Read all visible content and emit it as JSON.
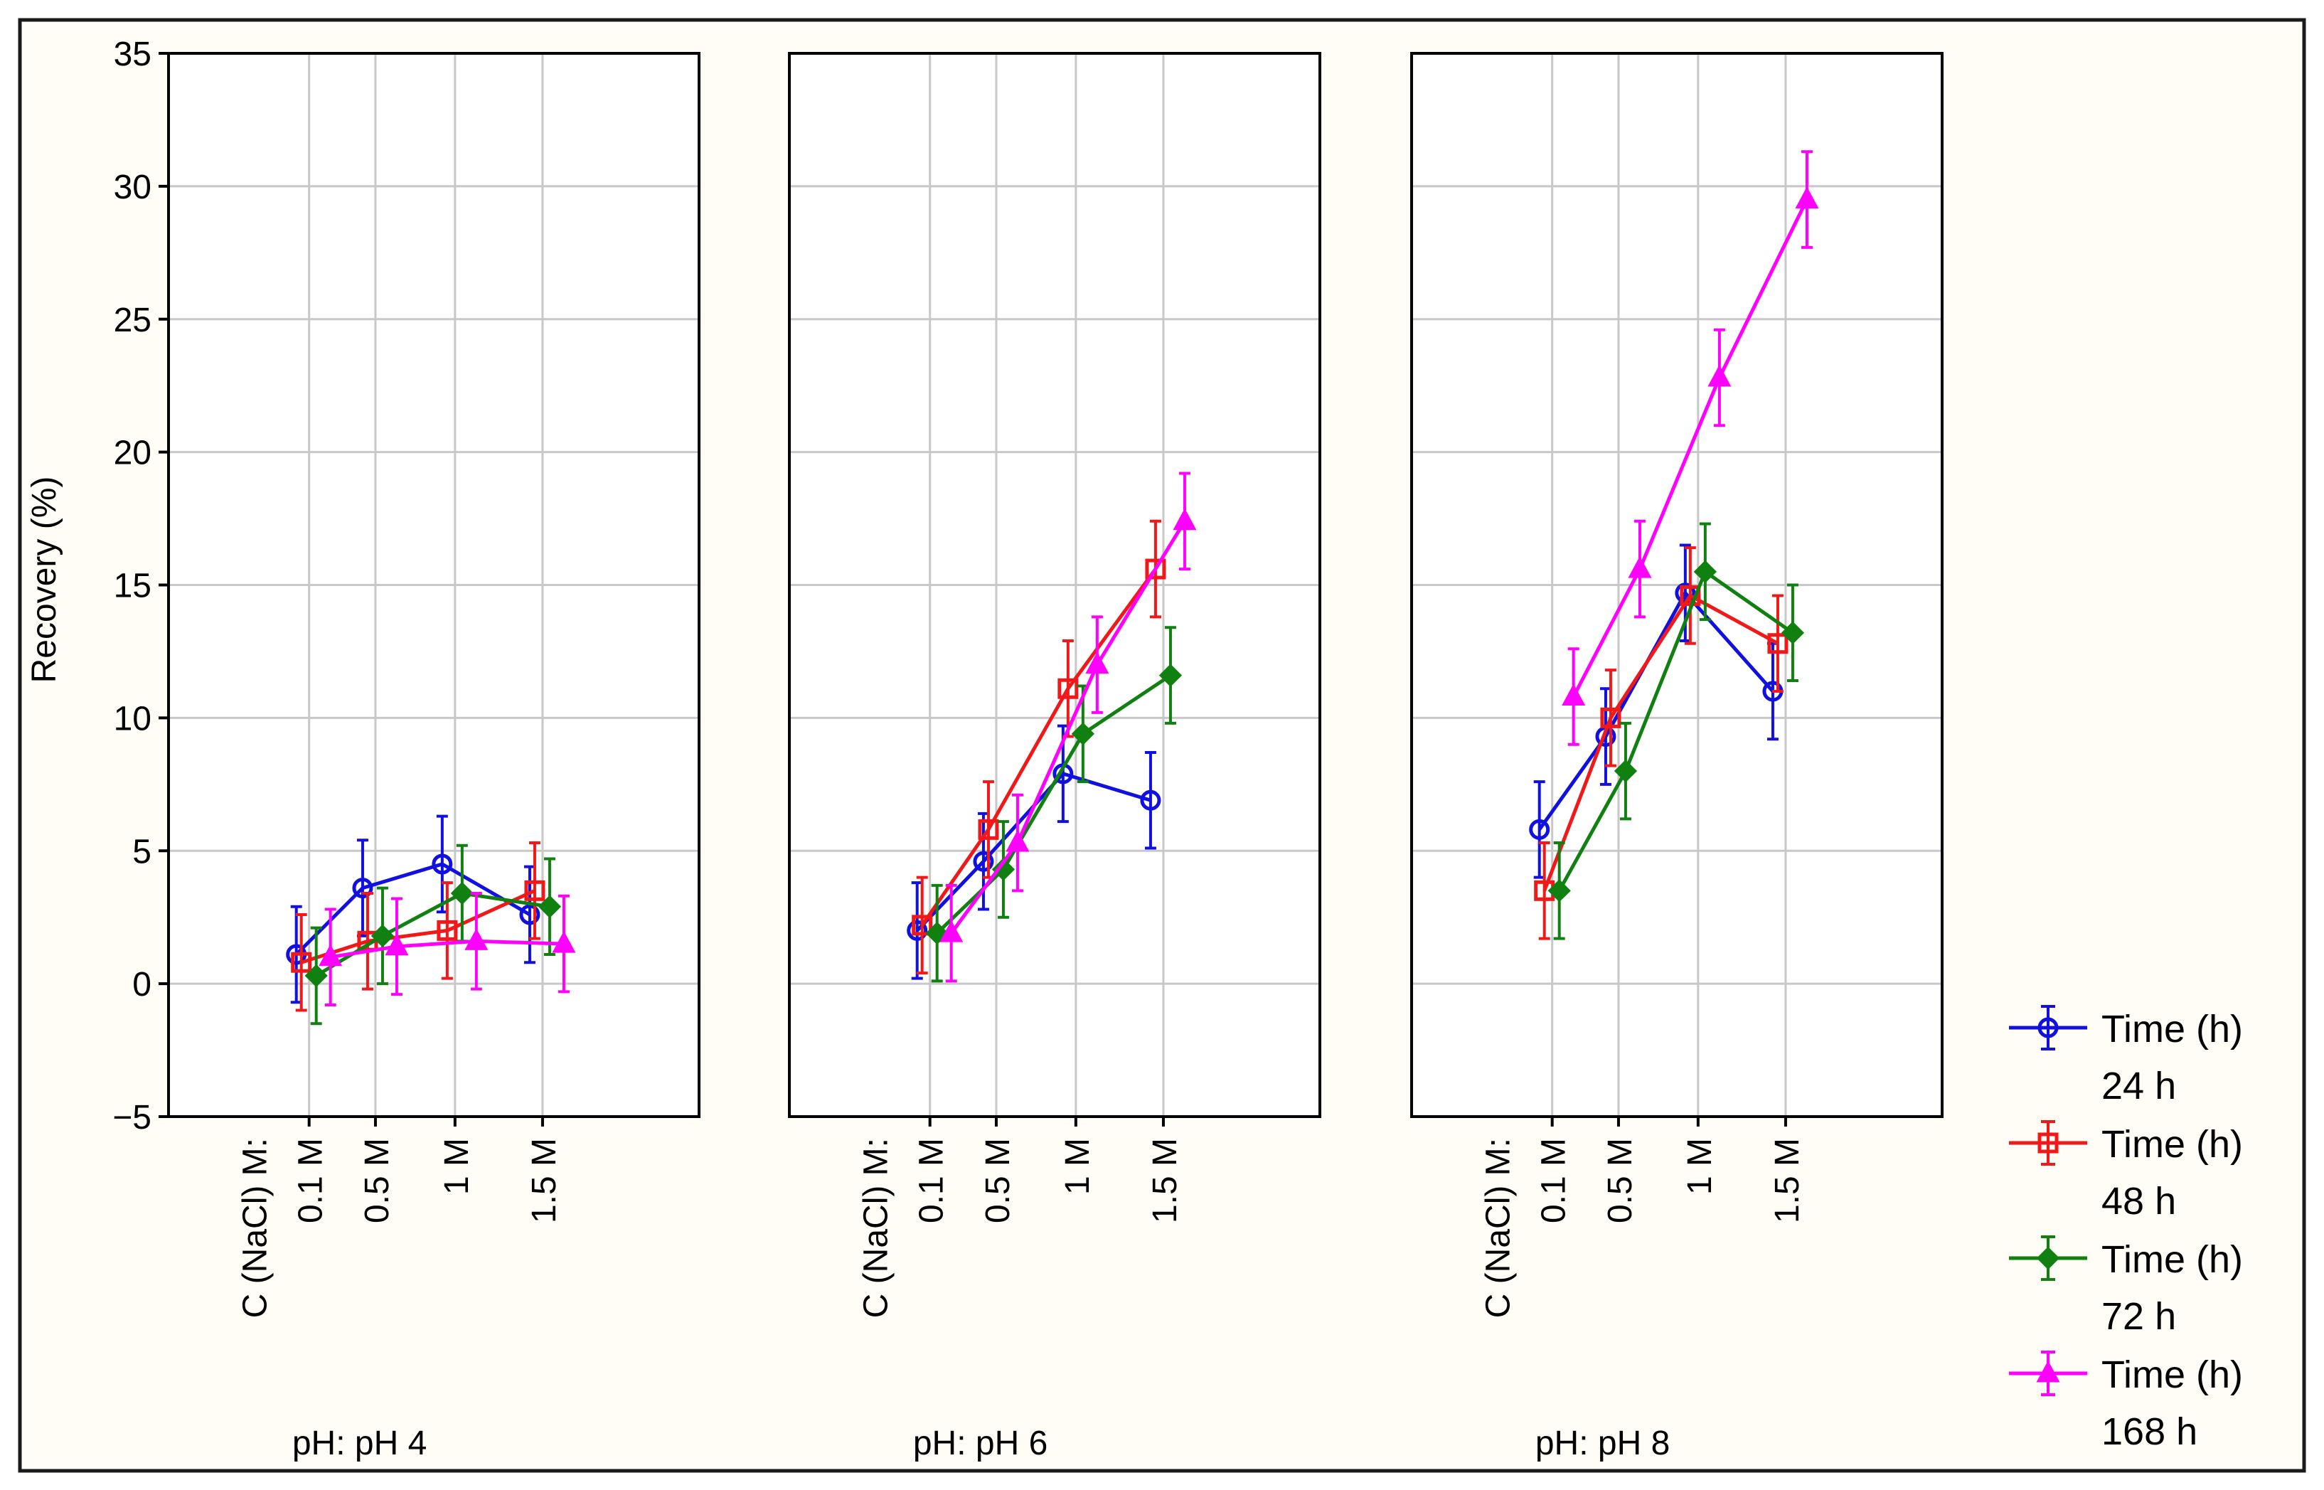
{
  "chart_data": {
    "type": "line",
    "ylabel": "Recovery (%)",
    "ylim": [
      -5,
      35
    ],
    "yticks": [
      35,
      30,
      25,
      20,
      15,
      10,
      5,
      0,
      -5
    ],
    "grid": true,
    "x_factor_label": "C (NaCl) M:",
    "categories": [
      "0.1 M",
      "0.5 M",
      "1 M",
      "1.5 M"
    ],
    "legend_position": "right",
    "colors": {
      "24 h": "#1010e0",
      "48 h": "#f01818",
      "72 h": "#108010",
      "168 h": "#ff00ff",
      "frame": "#000000",
      "grid": "#c8c8c8"
    },
    "legend": [
      {
        "title": "Time (h)",
        "label": "24 h",
        "marker": "circle"
      },
      {
        "title": "Time (h)",
        "label": "48 h",
        "marker": "square"
      },
      {
        "title": "Time (h)",
        "label": "72 h",
        "marker": "diamond"
      },
      {
        "title": "Time (h)",
        "label": "168 h",
        "marker": "triangle"
      }
    ],
    "panels": [
      {
        "title": "pH: pH 4",
        "series": [
          {
            "name": "24 h",
            "values": [
              1.1,
              3.6,
              4.5,
              2.6
            ],
            "error": [
              1.8,
              1.8,
              1.8,
              1.8
            ]
          },
          {
            "name": "48 h",
            "values": [
              0.8,
              1.6,
              2.0,
              3.5
            ],
            "error": [
              1.8,
              1.8,
              1.8,
              1.8
            ]
          },
          {
            "name": "72 h",
            "values": [
              0.3,
              1.8,
              3.4,
              2.9
            ],
            "error": [
              1.8,
              1.8,
              1.8,
              1.8
            ]
          },
          {
            "name": "168 h",
            "values": [
              1.0,
              1.4,
              1.6,
              1.5
            ],
            "error": [
              1.8,
              1.8,
              1.8,
              1.8
            ]
          }
        ]
      },
      {
        "title": "pH: pH 6",
        "series": [
          {
            "name": "24 h",
            "values": [
              2.0,
              4.6,
              7.9,
              6.9
            ],
            "error": [
              1.8,
              1.8,
              1.8,
              1.8
            ]
          },
          {
            "name": "48 h",
            "values": [
              2.2,
              5.8,
              11.1,
              15.6
            ],
            "error": [
              1.8,
              1.8,
              1.8,
              1.8
            ]
          },
          {
            "name": "72 h",
            "values": [
              1.9,
              4.3,
              9.4,
              11.6
            ],
            "error": [
              1.8,
              1.8,
              1.8,
              1.8
            ]
          },
          {
            "name": "168 h",
            "values": [
              1.9,
              5.3,
              12.0,
              17.4
            ],
            "error": [
              1.8,
              1.8,
              1.8,
              1.8
            ]
          }
        ]
      },
      {
        "title": "pH: pH 8",
        "series": [
          {
            "name": "24 h",
            "values": [
              5.8,
              9.3,
              14.7,
              11.0
            ],
            "error": [
              1.8,
              1.8,
              1.8,
              1.8
            ]
          },
          {
            "name": "48 h",
            "values": [
              3.5,
              10.0,
              14.6,
              12.8
            ],
            "error": [
              1.8,
              1.8,
              1.8,
              1.8
            ]
          },
          {
            "name": "72 h",
            "values": [
              3.5,
              8.0,
              15.5,
              13.2
            ],
            "error": [
              1.8,
              1.8,
              1.8,
              1.8
            ]
          },
          {
            "name": "168 h",
            "values": [
              10.8,
              15.6,
              22.8,
              29.5
            ],
            "error": [
              1.8,
              1.8,
              1.8,
              1.8
            ]
          }
        ]
      }
    ]
  }
}
